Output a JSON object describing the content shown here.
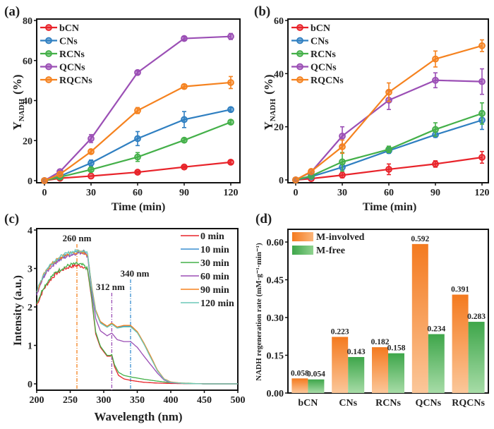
{
  "chart_data": [
    {
      "panel": "(a)",
      "type": "line",
      "xlabel": "Time (min)",
      "ylabel_main": "Y",
      "ylabel_sub": "NADH",
      "ylabel_unit": "(%)",
      "x": [
        0,
        10,
        30,
        60,
        90,
        120
      ],
      "xticks": [
        0,
        30,
        60,
        90,
        120
      ],
      "yticks": [
        0,
        20,
        40,
        60,
        80
      ],
      "xlim": [
        -3,
        125
      ],
      "ylim": [
        0,
        80
      ],
      "legend_position": "top-left",
      "series": [
        {
          "name": "bCN",
          "color": "#e8232a",
          "values": [
            0,
            1.2,
            2.3,
            4.2,
            6.8,
            9.2
          ],
          "err": [
            0.3,
            0.3,
            0.5,
            0.6,
            0.6,
            0.8
          ]
        },
        {
          "name": "CNs",
          "color": "#2f7fc1",
          "values": [
            0,
            2.2,
            8.8,
            21,
            30.5,
            35.5
          ],
          "err": [
            0.3,
            0.5,
            1.5,
            3.5,
            4,
            1
          ]
        },
        {
          "name": "RCNs",
          "color": "#44b049",
          "values": [
            0,
            1.8,
            5.5,
            11.8,
            20.2,
            29.2
          ],
          "err": [
            0.3,
            0.4,
            1,
            2.2,
            1,
            1
          ]
        },
        {
          "name": "QCNs",
          "color": "#9b4fb5",
          "values": [
            0,
            4.5,
            21,
            54,
            71,
            72
          ],
          "err": [
            0.3,
            0.6,
            2,
            0.8,
            0.8,
            1.5
          ]
        },
        {
          "name": "RQCNs",
          "color": "#f5821f",
          "values": [
            0,
            3.2,
            14.5,
            35,
            47,
            49
          ],
          "err": [
            0.3,
            0.5,
            1,
            1.5,
            1,
            3
          ]
        }
      ]
    },
    {
      "panel": "(b)",
      "type": "line",
      "xlabel": "Time (min)",
      "ylabel_main": "Y",
      "ylabel_sub": "NADH",
      "ylabel_unit": "(%)",
      "x": [
        0,
        10,
        30,
        60,
        90,
        120
      ],
      "xticks": [
        0,
        30,
        60,
        90,
        120
      ],
      "yticks": [
        0,
        20,
        40,
        60
      ],
      "xlim": [
        -3,
        125
      ],
      "ylim": [
        0,
        60
      ],
      "legend_position": "top-left",
      "series": [
        {
          "name": "bCN",
          "color": "#e8232a",
          "values": [
            0,
            0.5,
            1.8,
            4,
            6,
            8.5
          ],
          "err": [
            0.3,
            0.3,
            1,
            2,
            1.2,
            2.2
          ]
        },
        {
          "name": "CNs",
          "color": "#2f7fc1",
          "values": [
            0,
            1.2,
            4.8,
            11,
            17,
            22.5
          ],
          "err": [
            0.3,
            0.4,
            1,
            1,
            1,
            3.5
          ]
        },
        {
          "name": "RCNs",
          "color": "#44b049",
          "values": [
            0,
            1.5,
            6.8,
            11.5,
            19,
            25
          ],
          "err": [
            0.3,
            0.4,
            3.5,
            1.2,
            2.5,
            4
          ]
        },
        {
          "name": "QCNs",
          "color": "#9b4fb5",
          "values": [
            0,
            3,
            16.5,
            30,
            37.5,
            37
          ],
          "err": [
            0.3,
            0.5,
            3.5,
            3.5,
            2.8,
            4.8
          ]
        },
        {
          "name": "RQCNs",
          "color": "#f5821f",
          "values": [
            0,
            3.2,
            12.5,
            33,
            45.5,
            50.5
          ],
          "err": [
            0.3,
            0.5,
            2.5,
            3.5,
            3,
            2.2
          ]
        }
      ]
    },
    {
      "panel": "(c)",
      "type": "line",
      "xlabel": "Wavelength (nm)",
      "ylabel": "Intensity (a.u.)",
      "xticks": [
        200,
        250,
        300,
        350,
        400,
        450,
        500
      ],
      "yticks": [
        0,
        1,
        2,
        3,
        4
      ],
      "xlim": [
        200,
        500
      ],
      "ylim": [
        -0.2,
        4
      ],
      "legend_position": "top-right",
      "annotations": [
        {
          "text": "260 nm",
          "x": 260,
          "color": "#f5821f"
        },
        {
          "text": "312 nm",
          "x": 312,
          "color": "#9b4fb5"
        },
        {
          "text": "340 nm",
          "x": 340,
          "color": "#3a8fd0"
        }
      ],
      "series": [
        {
          "name": "0 min",
          "color": "#e8232a",
          "profile": "low",
          "x": [
            200,
            210,
            220,
            230,
            240,
            250,
            260,
            270,
            276,
            282,
            288,
            295,
            305,
            310,
            312,
            316,
            322,
            330,
            340,
            360,
            380,
            400,
            450,
            500
          ],
          "y": [
            2.05,
            2.45,
            2.7,
            2.88,
            2.98,
            3.05,
            3.08,
            3.05,
            2.95,
            2.2,
            1.3,
            0.95,
            0.72,
            0.72,
            0.75,
            0.45,
            0.22,
            0.13,
            0.09,
            0.04,
            0.02,
            0.01,
            0.0,
            0.0
          ]
        },
        {
          "name": "10 min",
          "color": "#3a8fd0",
          "profile": "high",
          "x": [
            200,
            210,
            220,
            230,
            240,
            250,
            260,
            270,
            276,
            282,
            288,
            295,
            305,
            312,
            320,
            330,
            340,
            350,
            360,
            370,
            380,
            390,
            400,
            420,
            450,
            500
          ],
          "y": [
            2.35,
            2.8,
            3.05,
            3.2,
            3.3,
            3.38,
            3.43,
            3.45,
            3.35,
            2.5,
            1.9,
            1.6,
            1.48,
            1.57,
            1.47,
            1.5,
            1.5,
            1.35,
            1.05,
            0.7,
            0.35,
            0.12,
            0.04,
            0.01,
            0.0,
            0.0
          ]
        },
        {
          "name": "30 min",
          "color": "#44b049",
          "profile": "low",
          "x": [
            200,
            210,
            220,
            230,
            240,
            250,
            260,
            270,
            276,
            282,
            288,
            295,
            305,
            310,
            312,
            316,
            322,
            330,
            340,
            360,
            380,
            400,
            450,
            500
          ],
          "y": [
            2.1,
            2.5,
            2.75,
            2.92,
            3.02,
            3.1,
            3.12,
            3.08,
            2.98,
            2.25,
            1.35,
            0.98,
            0.74,
            0.74,
            0.76,
            0.5,
            0.3,
            0.22,
            0.18,
            0.12,
            0.07,
            0.03,
            0.0,
            0.0
          ]
        },
        {
          "name": "60 min",
          "color": "#9b4fb5",
          "profile": "mid",
          "x": [
            200,
            210,
            220,
            230,
            240,
            250,
            260,
            270,
            276,
            282,
            288,
            295,
            305,
            312,
            320,
            330,
            340,
            350,
            360,
            370,
            380,
            390,
            400,
            420,
            450,
            500
          ],
          "y": [
            2.3,
            2.78,
            3.02,
            3.18,
            3.28,
            3.35,
            3.4,
            3.42,
            3.32,
            2.4,
            1.7,
            1.38,
            1.25,
            1.32,
            1.15,
            1.1,
            1.1,
            0.95,
            0.72,
            0.5,
            0.28,
            0.1,
            0.03,
            0.01,
            0.0,
            0.0
          ]
        },
        {
          "name": "90 min",
          "color": "#f5821f",
          "profile": "high",
          "x": [
            200,
            210,
            220,
            230,
            240,
            250,
            260,
            270,
            276,
            282,
            288,
            295,
            305,
            312,
            320,
            330,
            340,
            350,
            360,
            370,
            380,
            390,
            400,
            420,
            450,
            500
          ],
          "y": [
            2.38,
            2.82,
            3.08,
            3.22,
            3.32,
            3.4,
            3.42,
            3.42,
            3.36,
            2.55,
            1.92,
            1.62,
            1.5,
            1.58,
            1.48,
            1.52,
            1.52,
            1.36,
            1.06,
            0.72,
            0.36,
            0.13,
            0.05,
            0.01,
            0.0,
            0.0
          ]
        },
        {
          "name": "120 min",
          "color": "#6cc9b8",
          "profile": "high",
          "x": [
            200,
            210,
            220,
            230,
            240,
            250,
            260,
            270,
            276,
            282,
            288,
            295,
            305,
            312,
            320,
            330,
            340,
            350,
            360,
            370,
            380,
            390,
            400,
            420,
            450,
            500
          ],
          "y": [
            2.4,
            2.85,
            3.1,
            3.25,
            3.35,
            3.42,
            3.46,
            3.47,
            3.38,
            2.5,
            1.88,
            1.58,
            1.47,
            1.55,
            1.45,
            1.48,
            1.48,
            1.33,
            1.03,
            0.68,
            0.34,
            0.12,
            0.04,
            0.01,
            0.0,
            0.0
          ]
        }
      ]
    },
    {
      "panel": "(d)",
      "type": "bar",
      "ylabel": "NADH regeneration rate (mM·g⁻¹·min⁻¹)",
      "categories": [
        "bCN",
        "CNs",
        "RCNs",
        "QCNs",
        "RQCNs"
      ],
      "yticks": [
        "0.00",
        "0.15",
        "0.30",
        "0.45",
        "0.60"
      ],
      "ylim": [
        0,
        0.64
      ],
      "legend_position": "top-left",
      "series": [
        {
          "name": "M-involved",
          "color": "#f5821f",
          "values": [
            0.058,
            0.223,
            0.182,
            0.592,
            0.391
          ],
          "labels": [
            "0.058",
            "0.223",
            "0.182",
            "0.592",
            "0.391"
          ]
        },
        {
          "name": "M-free",
          "color": "#3ea64a",
          "values": [
            0.054,
            0.143,
            0.158,
            0.234,
            0.283
          ],
          "labels": [
            "0.054",
            "0.143",
            "0.158",
            "0.234",
            "0.283"
          ]
        }
      ]
    }
  ]
}
